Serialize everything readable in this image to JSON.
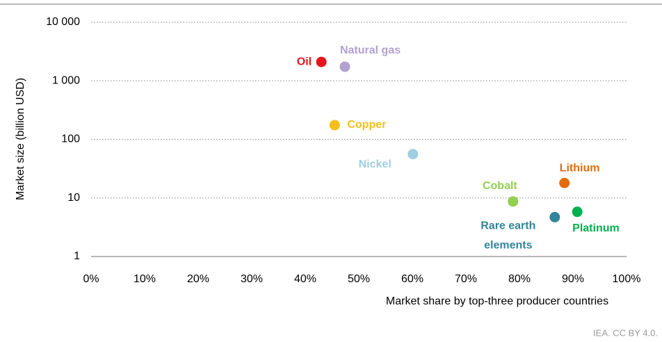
{
  "chart_data": {
    "type": "scatter",
    "x_label": "Market share by top-three producer countries",
    "y_label": "Market size (billion USD)",
    "source": "IEA. CC BY 4.0.",
    "xlim": [
      0,
      100
    ],
    "xticks": [
      {
        "value": 0,
        "label": "0%"
      },
      {
        "value": 10,
        "label": "10%"
      },
      {
        "value": 20,
        "label": "20%"
      },
      {
        "value": 30,
        "label": "30%"
      },
      {
        "value": 40,
        "label": "40%"
      },
      {
        "value": 50,
        "label": "50%"
      },
      {
        "value": 60,
        "label": "60%"
      },
      {
        "value": 70,
        "label": "70%"
      },
      {
        "value": 80,
        "label": "80%"
      },
      {
        "value": 90,
        "label": "90%"
      },
      {
        "value": 100,
        "label": "100%"
      }
    ],
    "ylim": [
      1,
      10000
    ],
    "yticks": [
      1,
      10,
      100,
      {
        "value": 1000,
        "label": "1 000"
      },
      {
        "value": 10000,
        "label": "10 000"
      }
    ],
    "log_y": true,
    "grid": true,
    "series": [
      {
        "name": "Oil",
        "color": "#e8141b",
        "x": [
          43
        ],
        "values": [
          2100
        ]
      },
      {
        "name": "Natural gas",
        "color": "#b3a2cf",
        "x": [
          47.4
        ],
        "values": [
          1740
        ]
      },
      {
        "name": "Copper",
        "color": "#f5bf17",
        "x": [
          45.5
        ],
        "values": [
          175
        ]
      },
      {
        "name": "Nickel",
        "color": "#9fcfe0",
        "x": [
          60.1
        ],
        "values": [
          56
        ]
      },
      {
        "name": "Lithium",
        "color": "#e36c0a",
        "x": [
          88.4
        ],
        "values": [
          18
        ]
      },
      {
        "name": "Cobalt",
        "color": "#92d050",
        "x": [
          78.8
        ],
        "values": [
          8.7
        ]
      },
      {
        "name": "Rare earth elements",
        "color": "#31859b",
        "x": [
          86.6
        ],
        "values": [
          4.7
        ]
      },
      {
        "name": "Platinum",
        "color": "#00b050",
        "x": [
          90.8
        ],
        "values": [
          5.8
        ]
      }
    ]
  }
}
